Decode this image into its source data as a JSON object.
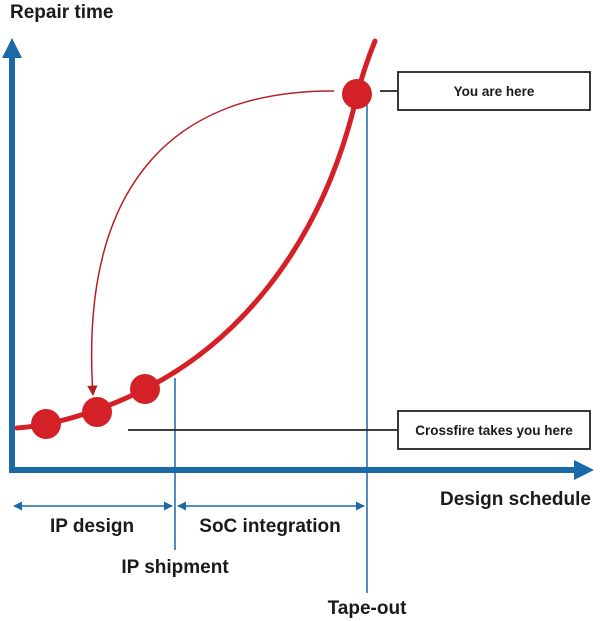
{
  "diagram": {
    "y_axis_label": "Repair time",
    "x_axis_label": "Design schedule",
    "phases": [
      {
        "label": "IP design"
      },
      {
        "label": "SoC integration"
      }
    ],
    "milestones": [
      {
        "label": "IP shipment"
      },
      {
        "label": "Tape-out"
      }
    ],
    "callouts": {
      "current": "You are here",
      "target": "Crossfire takes you here"
    },
    "colors": {
      "axis": "#1a6aa8",
      "curve": "#d42027",
      "arrow": "#b52025",
      "box_border": "#222222",
      "text": "#1a1a1a"
    }
  }
}
